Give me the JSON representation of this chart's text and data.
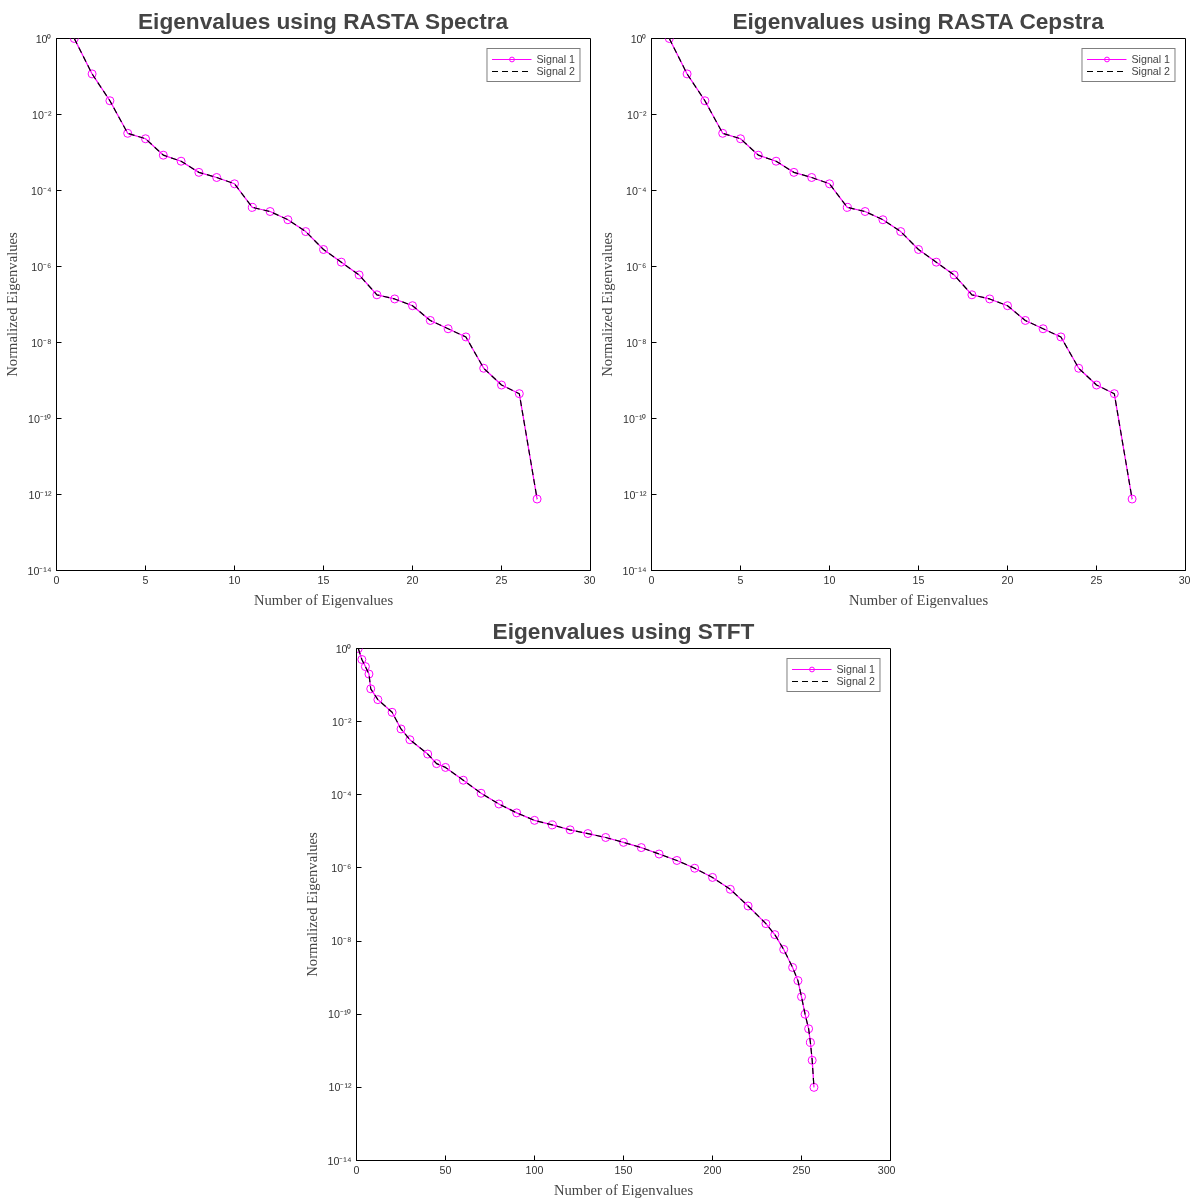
{
  "chart_data": [
    {
      "type": "line",
      "title": "Eigenvalues using RASTA Spectra",
      "xlabel": "Number of Eigenvalues",
      "ylabel": "Normalized Eigenvalues",
      "log": "y",
      "legend": "top right",
      "grid": false,
      "x": [
        1,
        2,
        3,
        4,
        5,
        6,
        7,
        8,
        9,
        10,
        11,
        12,
        13,
        14,
        15,
        16,
        17,
        18,
        19,
        20,
        21,
        22,
        23,
        24,
        25,
        26,
        27
      ],
      "xlim": [
        0,
        30
      ],
      "xticks": [
        0,
        5,
        10,
        15,
        20,
        25,
        30
      ],
      "ylim": [
        1e-14,
        1
      ],
      "yticks": [
        {
          "value": 1e-14,
          "label": "10⁻¹⁴"
        },
        {
          "value": 1e-12,
          "label": "10⁻¹²"
        },
        {
          "value": 1e-10,
          "label": "10⁻¹⁰"
        },
        {
          "value": 1e-08,
          "label": "10⁻⁸"
        },
        {
          "value": 1e-06,
          "label": "10⁻⁶"
        },
        {
          "value": 0.0001,
          "label": "10⁻⁴"
        },
        {
          "value": 0.01,
          "label": "10⁻²"
        },
        {
          "value": 1,
          "label": "10⁰"
        }
      ],
      "series": [
        {
          "name": "Signal 1",
          "color": "#ff00ff",
          "marker": "circle",
          "line_style": "solid",
          "values": [
            1,
            0.117,
            0.023,
            0.0032,
            0.0023,
            0.00085,
            0.00059,
            0.0003,
            0.00022,
            0.00015,
            3.6e-05,
            2.8e-05,
            1.7e-05,
            8.3e-06,
            2.8e-06,
            1.3e-06,
            6e-07,
            1.8e-07,
            1.4e-07,
            9.3e-08,
            3.8e-08,
            2.3e-08,
            1.4e-08,
            2.1e-09,
            7.6e-10,
            4.5e-10,
            7.6e-13
          ]
        },
        {
          "name": "Signal 2",
          "color": "#000000",
          "marker": "none",
          "line_style": "dashed",
          "values": [
            1,
            0.117,
            0.023,
            0.0032,
            0.0023,
            0.00085,
            0.00059,
            0.0003,
            0.00022,
            0.00015,
            3.6e-05,
            2.8e-05,
            1.7e-05,
            8.3e-06,
            2.8e-06,
            1.3e-06,
            6e-07,
            1.8e-07,
            1.4e-07,
            9.3e-08,
            3.8e-08,
            2.3e-08,
            1.4e-08,
            2.1e-09,
            7.6e-10,
            4.5e-10,
            7.6e-13
          ]
        }
      ]
    },
    {
      "type": "line",
      "title": "Eigenvalues using RASTA Cepstra",
      "xlabel": "Number of Eigenvalues",
      "ylabel": "Normalized Eigenvalues",
      "log": "y",
      "legend": "top right",
      "grid": false,
      "x": [
        1,
        2,
        3,
        4,
        5,
        6,
        7,
        8,
        9,
        10,
        11,
        12,
        13,
        14,
        15,
        16,
        17,
        18,
        19,
        20,
        21,
        22,
        23,
        24,
        25,
        26,
        27
      ],
      "xlim": [
        0,
        30
      ],
      "xticks": [
        0,
        5,
        10,
        15,
        20,
        25,
        30
      ],
      "ylim": [
        1e-14,
        1
      ],
      "yticks": [
        {
          "value": 1e-14,
          "label": "10⁻¹⁴"
        },
        {
          "value": 1e-12,
          "label": "10⁻¹²"
        },
        {
          "value": 1e-10,
          "label": "10⁻¹⁰"
        },
        {
          "value": 1e-08,
          "label": "10⁻⁸"
        },
        {
          "value": 1e-06,
          "label": "10⁻⁶"
        },
        {
          "value": 0.0001,
          "label": "10⁻⁴"
        },
        {
          "value": 0.01,
          "label": "10⁻²"
        },
        {
          "value": 1,
          "label": "10⁰"
        }
      ],
      "series": [
        {
          "name": "Signal 1",
          "color": "#ff00ff",
          "marker": "circle",
          "line_style": "solid",
          "values": [
            1,
            0.117,
            0.023,
            0.0032,
            0.0023,
            0.00085,
            0.00059,
            0.0003,
            0.00022,
            0.00015,
            3.6e-05,
            2.8e-05,
            1.7e-05,
            8.3e-06,
            2.8e-06,
            1.3e-06,
            6e-07,
            1.8e-07,
            1.4e-07,
            9.3e-08,
            3.8e-08,
            2.3e-08,
            1.4e-08,
            2.1e-09,
            7.6e-10,
            4.5e-10,
            7.6e-13
          ]
        },
        {
          "name": "Signal 2",
          "color": "#000000",
          "marker": "none",
          "line_style": "dashed",
          "values": [
            1,
            0.117,
            0.023,
            0.0032,
            0.0023,
            0.00085,
            0.00059,
            0.0003,
            0.00022,
            0.00015,
            3.6e-05,
            2.8e-05,
            1.7e-05,
            8.3e-06,
            2.8e-06,
            1.3e-06,
            6e-07,
            1.8e-07,
            1.4e-07,
            9.3e-08,
            3.8e-08,
            2.3e-08,
            1.4e-08,
            2.1e-09,
            7.6e-10,
            4.5e-10,
            7.6e-13
          ]
        }
      ]
    },
    {
      "type": "line",
      "title": "Eigenvalues using STFT",
      "xlabel": "Number of Eigenvalues",
      "ylabel": "Normalized Eigenvalues",
      "log": "y",
      "legend": "top right",
      "grid": false,
      "x": [
        1,
        3,
        5,
        7,
        8,
        12,
        20,
        25,
        30,
        40,
        45,
        50,
        60,
        70,
        80,
        90,
        100,
        110,
        120,
        130,
        140,
        150,
        160,
        170,
        180,
        190,
        200,
        210,
        220,
        230,
        235,
        240,
        245,
        248,
        250,
        252,
        254,
        255,
        256,
        257
      ],
      "xlim": [
        0,
        300
      ],
      "xticks": [
        0,
        50,
        100,
        150,
        200,
        250,
        300
      ],
      "ylim": [
        1e-14,
        1
      ],
      "yticks": [
        {
          "value": 1e-14,
          "label": "10⁻¹⁴"
        },
        {
          "value": 1e-12,
          "label": "10⁻¹²"
        },
        {
          "value": 1e-10,
          "label": "10⁻¹⁰"
        },
        {
          "value": 1e-08,
          "label": "10⁻⁸"
        },
        {
          "value": 1e-06,
          "label": "10⁻⁶"
        },
        {
          "value": 0.0001,
          "label": "10⁻⁴"
        },
        {
          "value": 0.01,
          "label": "10⁻²"
        },
        {
          "value": 1,
          "label": "10⁰"
        }
      ],
      "series": [
        {
          "name": "Signal 1",
          "color": "#ff00ff",
          "marker": "circle",
          "line_style": "solid",
          "values": [
            1,
            0.5,
            0.32,
            0.2,
            0.079,
            0.04,
            0.018,
            0.0063,
            0.0032,
            0.0013,
            0.00071,
            0.00056,
            0.00025,
            0.00011,
            5.6e-05,
            3.2e-05,
            2e-05,
            1.5e-05,
            1.1e-05,
            8.7e-06,
            6.8e-06,
            5e-06,
            3.6e-06,
            2.4e-06,
            1.6e-06,
            9.8e-07,
            5.5e-07,
            2.6e-07,
            9.1e-08,
            3e-08,
            1.5e-08,
            5.9e-09,
            1.9e-09,
            8.3e-10,
            3e-10,
            1e-10,
            4e-11,
            1.7e-11,
            5.5e-12,
            1e-12
          ]
        },
        {
          "name": "Signal 2",
          "color": "#000000",
          "marker": "none",
          "line_style": "dashed",
          "values": [
            1,
            0.5,
            0.32,
            0.2,
            0.079,
            0.04,
            0.018,
            0.0063,
            0.0032,
            0.0013,
            0.00071,
            0.00056,
            0.00025,
            0.00011,
            5.6e-05,
            3.2e-05,
            2e-05,
            1.5e-05,
            1.1e-05,
            8.7e-06,
            6.8e-06,
            5e-06,
            3.6e-06,
            2.4e-06,
            1.6e-06,
            9.8e-07,
            5.5e-07,
            2.6e-07,
            9.1e-08,
            3e-08,
            1.5e-08,
            5.9e-09,
            1.9e-09,
            8.3e-10,
            3e-10,
            1e-10,
            4e-11,
            1.7e-11,
            5.5e-12,
            1e-12
          ]
        }
      ]
    }
  ]
}
